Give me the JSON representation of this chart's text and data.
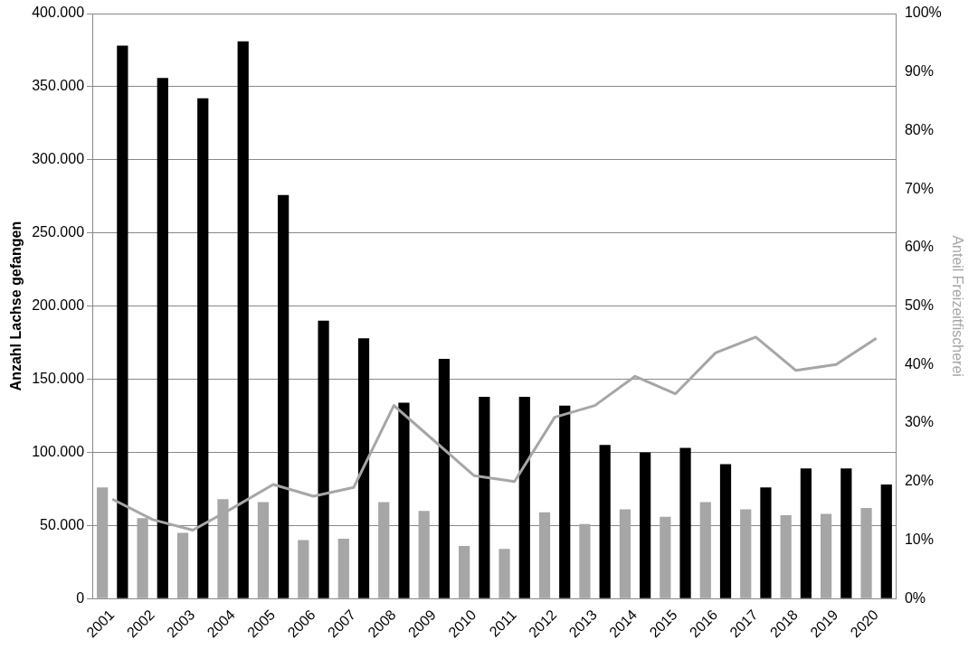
{
  "chart_data": {
    "type": "bar",
    "ylabel": "Anzahl Lachse gefangen",
    "y2label": "Anteil Freizeitfischerei",
    "categories": [
      "2001",
      "2002",
      "2003",
      "2004",
      "2005",
      "2006",
      "2007",
      "2008",
      "2009",
      "2010",
      "2011",
      "2012",
      "2013",
      "2014",
      "2015",
      "2016",
      "2017",
      "2018",
      "2019",
      "2020"
    ],
    "series": [
      {
        "color": "#a6a6a6",
        "values": [
          76000,
          55000,
          45000,
          68000,
          66000,
          40000,
          41000,
          66000,
          60000,
          36000,
          34000,
          59000,
          51000,
          61000,
          56000,
          66000,
          61000,
          57000,
          58000,
          62000
        ]
      },
      {
        "color": "#000000",
        "values": [
          378000,
          356000,
          342000,
          381000,
          276000,
          190000,
          178000,
          134000,
          164000,
          138000,
          138000,
          132000,
          105000,
          100000,
          103000,
          92000,
          76000,
          89000,
          89000,
          78000
        ]
      },
      {
        "type": "line",
        "axis": "y2",
        "color": "#a6a6a6",
        "values": [
          17,
          13.5,
          11.7,
          15.5,
          19.5,
          17.5,
          19,
          33,
          27,
          21,
          20,
          31,
          33,
          38,
          35,
          42,
          44.7,
          39,
          40,
          44.5
        ]
      }
    ],
    "ylim": [
      0,
      400000
    ],
    "yticks": [
      {
        "value": 0,
        "label": "0"
      },
      {
        "value": 50000,
        "label": "50.000"
      },
      {
        "value": 100000,
        "label": "100.000"
      },
      {
        "value": 150000,
        "label": "150.000"
      },
      {
        "value": 200000,
        "label": "200.000"
      },
      {
        "value": 250000,
        "label": "250.000"
      },
      {
        "value": 300000,
        "label": "300.000"
      },
      {
        "value": 350000,
        "label": "350.000"
      },
      {
        "value": 400000,
        "label": "400.000"
      }
    ],
    "y2lim": [
      0,
      100
    ],
    "y2ticks": [
      {
        "value": 0,
        "label": "0%"
      },
      {
        "value": 10,
        "label": "10%"
      },
      {
        "value": 20,
        "label": "20%"
      },
      {
        "value": 30,
        "label": "30%"
      },
      {
        "value": 40,
        "label": "40%"
      },
      {
        "value": 50,
        "label": "50%"
      },
      {
        "value": 60,
        "label": "60%"
      },
      {
        "value": 70,
        "label": "70%"
      },
      {
        "value": 80,
        "label": "80%"
      },
      {
        "value": 90,
        "label": "90%"
      },
      {
        "value": 100,
        "label": "100%"
      }
    ],
    "grid": "y",
    "legend": false,
    "marker": "none",
    "line_style": "solid"
  }
}
